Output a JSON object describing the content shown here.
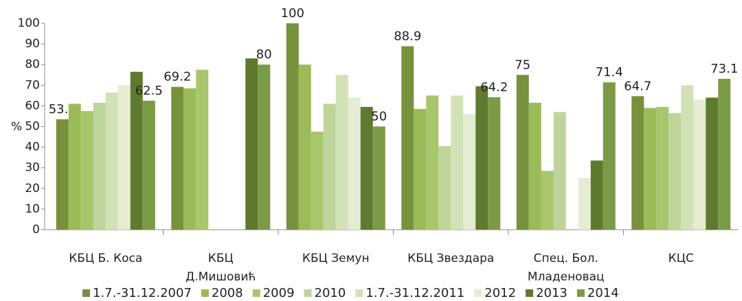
{
  "chart_data": {
    "type": "bar",
    "y_label": "%",
    "categories": [
      "КБЦ Б. Коса",
      "КБЦ\nД.Мишовић",
      "КБЦ Земун",
      "КБЦ Звездара",
      "Спец. Бол.\nМладеновац",
      "КЦС"
    ],
    "series": [
      {
        "name": "1.7.-31.12.2007",
        "color": "#76923c",
        "show_labels": true,
        "values": [
          53.5,
          69.2,
          100,
          88.9,
          75,
          64.7
        ]
      },
      {
        "name": "2008",
        "color": "#9bbb59",
        "values": [
          61,
          68.5,
          80,
          58.5,
          61.5,
          59
        ]
      },
      {
        "name": "2009",
        "color": "#a8c66c",
        "values": [
          57.5,
          77.5,
          47.5,
          65,
          28.5,
          59.5
        ]
      },
      {
        "name": "2010",
        "color": "#bfd49a",
        "values": [
          61.5,
          null,
          61,
          40.5,
          57,
          56.5
        ]
      },
      {
        "name": "1.7.-31.12.2011",
        "color": "#d3e2b6",
        "values": [
          66.5,
          null,
          75,
          65,
          null,
          70
        ]
      },
      {
        "name": "2012",
        "color": "#e4ecd3",
        "values": [
          70,
          null,
          64,
          56,
          25,
          63
        ]
      },
      {
        "name": "2013",
        "color": "#5f7a2f",
        "values": [
          76.5,
          83,
          59.5,
          69.5,
          33.5,
          64
        ]
      },
      {
        "name": "2014",
        "color": "#7b9b46",
        "show_labels": true,
        "values": [
          62.5,
          80,
          50,
          64.2,
          71.4,
          73.1
        ]
      }
    ],
    "ylim": [
      0,
      100
    ],
    "yticks": [
      0,
      10,
      20,
      30,
      40,
      50,
      60,
      70,
      80,
      90,
      100
    ],
    "grid": false,
    "legend": "bottom"
  }
}
